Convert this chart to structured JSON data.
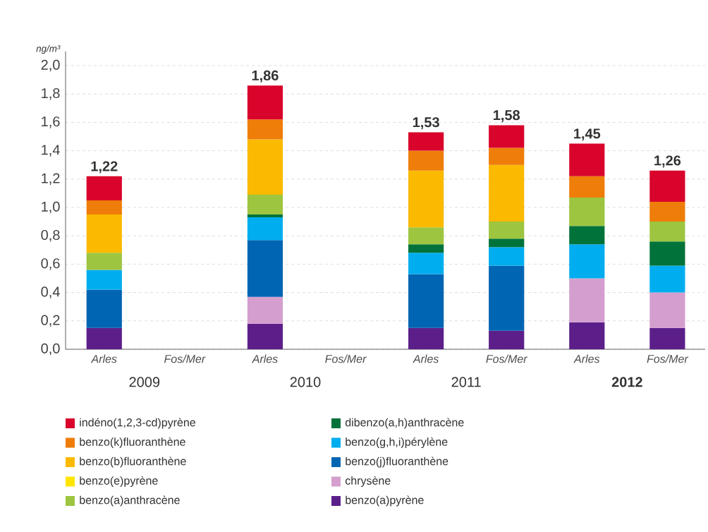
{
  "chart_data": {
    "type": "bar",
    "stacked": true,
    "ylabel": "ng/m³",
    "categories": [
      "Arles",
      "Fos/Mer",
      "Arles",
      "Fos/Mer",
      "Arles",
      "Fos/Mer",
      "Arles",
      "Fos/Mer"
    ],
    "series": [
      {
        "name": "benzo(a)pyrène",
        "color": "#5c1f8a",
        "values": [
          0.15,
          null,
          0.18,
          null,
          0.15,
          0.13,
          0.19,
          0.15
        ]
      },
      {
        "name": "chrysène",
        "color": "#d49fcf",
        "values": [
          null,
          null,
          0.19,
          null,
          null,
          null,
          0.31,
          0.25
        ]
      },
      {
        "name": "benzo(j)fluoranthène",
        "color": "#0065b3",
        "values": [
          0.27,
          null,
          0.4,
          null,
          0.38,
          0.46,
          null,
          null
        ]
      },
      {
        "name": "benzo(g,h,i)pérylène",
        "color": "#00aeef",
        "values": [
          0.14,
          null,
          0.16,
          null,
          0.15,
          0.13,
          0.24,
          0.19
        ]
      },
      {
        "name": "dibenzo(a,h)anthracène",
        "color": "#00723a",
        "values": [
          null,
          null,
          0.02,
          null,
          0.06,
          0.06,
          0.13,
          0.17
        ]
      },
      {
        "name": "benzo(a)anthracène",
        "color": "#9dc53f",
        "values": [
          0.12,
          null,
          0.14,
          null,
          0.12,
          0.12,
          0.2,
          0.14
        ]
      },
      {
        "name": "benzo(e)pyrène",
        "color": "#ffe500",
        "values": [
          null,
          null,
          null,
          null,
          null,
          null,
          null,
          null
        ]
      },
      {
        "name": "benzo(b)fluoranthène",
        "color": "#fbb900",
        "values": [
          0.27,
          null,
          0.39,
          null,
          0.4,
          0.4,
          null,
          null
        ]
      },
      {
        "name": "benzo(k)fluoranthène",
        "color": "#ee7d0a",
        "values": [
          0.1,
          null,
          0.14,
          null,
          0.14,
          0.12,
          0.15,
          0.14
        ]
      },
      {
        "name": "indéno(1,2,3-cd)pyrène",
        "color": "#d9042b",
        "values": [
          0.17,
          null,
          0.24,
          null,
          0.13,
          0.16,
          0.23,
          0.22
        ]
      }
    ],
    "totals": [
      "1,22",
      null,
      "1,86",
      null,
      "1,53",
      "1,58",
      "1,45",
      "1,26"
    ],
    "annotations": [
      "2009",
      "2010",
      "2011",
      "**2012**"
    ],
    "ylim": [
      0,
      2.1
    ],
    "yticks": [
      {
        "value": 0,
        "label": "0,0"
      },
      {
        "value": 0.2,
        "label": "0,2"
      },
      {
        "value": 0.4,
        "label": "0,4"
      },
      {
        "value": 0.6,
        "label": "0,6"
      },
      {
        "value": 0.8,
        "label": "0,8"
      },
      {
        "value": 1.0,
        "label": "1,0"
      },
      {
        "value": 1.2,
        "label": "1,2"
      },
      {
        "value": 1.4,
        "label": "1,4"
      },
      {
        "value": 1.6,
        "label": "1,6"
      },
      {
        "value": 1.8,
        "label": "1,8"
      },
      {
        "value": 2.0,
        "label": "2,0"
      }
    ],
    "grid": "y",
    "legend": "bottom"
  }
}
